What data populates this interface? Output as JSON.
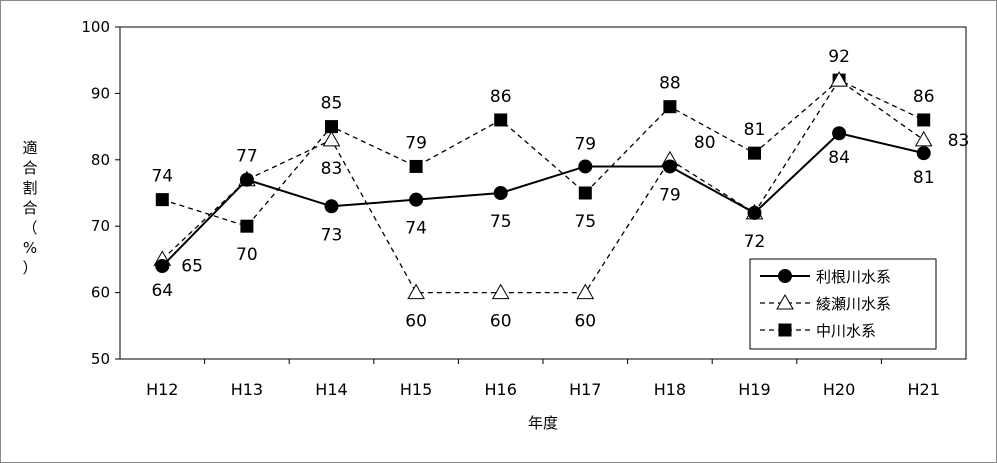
{
  "chart_data": {
    "type": "line",
    "title": "",
    "xlabel": "年度",
    "ylabel": "適合割合（%）",
    "ylim": [
      50,
      100
    ],
    "yticks": [
      "50",
      "60",
      "70",
      "80",
      "90",
      "100"
    ],
    "categories": [
      "H12",
      "H13",
      "H14",
      "H15",
      "H16",
      "H17",
      "H18",
      "H19",
      "H20",
      "H21"
    ],
    "grid": false,
    "legend_position": "bottom-right",
    "series": [
      {
        "name": "利根川水系",
        "values": [
          64,
          77,
          73,
          74,
          75,
          79,
          79,
          72,
          84,
          81
        ],
        "marker": "circle",
        "line": "solid",
        "color": "#000000"
      },
      {
        "name": "綾瀬川水系",
        "values": [
          65,
          77,
          83,
          60,
          60,
          60,
          80,
          72,
          92,
          83
        ],
        "marker": "triangle-open",
        "line": "dashed",
        "color": "#000000"
      },
      {
        "name": "中川水系",
        "values": [
          74,
          70,
          85,
          79,
          86,
          75,
          88,
          81,
          92,
          86
        ],
        "marker": "square",
        "line": "dashed",
        "color": "#000000"
      }
    ]
  }
}
